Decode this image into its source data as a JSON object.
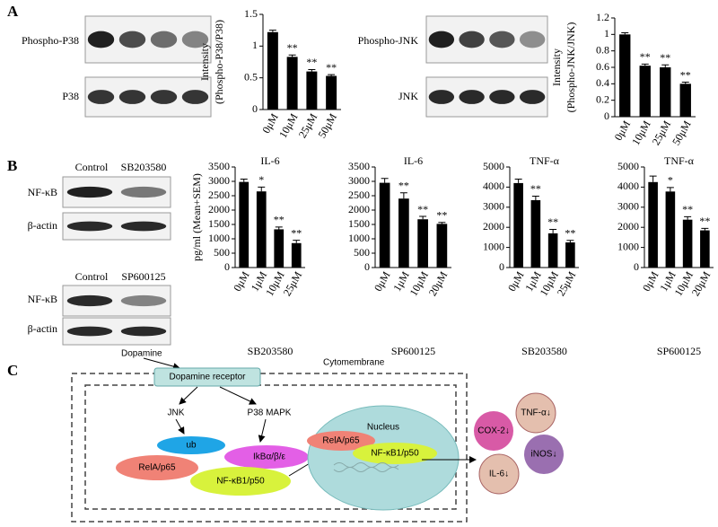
{
  "chart_data": [
    {
      "type": "bar",
      "ylabel": [
        "Intensity",
        "(Phospho-P38/P38)"
      ],
      "categories": [
        "0μM",
        "10μM",
        "25μM",
        "50μM"
      ],
      "values": [
        1.22,
        0.83,
        0.6,
        0.53
      ],
      "errors": [
        0.03,
        0.03,
        0.03,
        0.02
      ],
      "annotations": [
        null,
        "**",
        "**",
        "**"
      ],
      "color": "#000000",
      "ylim": [
        0,
        1.5
      ],
      "yticks": [
        0,
        0.5,
        1,
        1.5
      ]
    },
    {
      "type": "bar",
      "ylabel": [
        "Intensity",
        "(Phospho-JNK/JNK)"
      ],
      "categories": [
        "0μM",
        "10μM",
        "25μM",
        "50μM"
      ],
      "values": [
        1.0,
        0.62,
        0.6,
        0.4
      ],
      "errors": [
        0.02,
        0.02,
        0.03,
        0.02
      ],
      "annotations": [
        null,
        "**",
        "**",
        "**"
      ],
      "color": "#000000",
      "ylim": [
        0,
        1.2
      ],
      "yticks": [
        0,
        0.2,
        0.4,
        0.6,
        0.8,
        1,
        1.2
      ]
    },
    {
      "type": "bar",
      "title": "IL-6",
      "xlabel": "SB203580",
      "ylabel": [
        "pg/ml (Mean+SEM)"
      ],
      "categories": [
        "0μM",
        "1μM",
        "10μM",
        "25μM"
      ],
      "values": [
        2980,
        2650,
        1330,
        850
      ],
      "errors": [
        100,
        150,
        80,
        100
      ],
      "annotations": [
        null,
        "*",
        "**",
        "**"
      ],
      "color": "#000000",
      "ylim": [
        0,
        3500
      ],
      "yticks": [
        0,
        500,
        1000,
        1500,
        2000,
        2500,
        3000,
        3500
      ]
    },
    {
      "type": "bar",
      "title": "IL-6",
      "xlabel": "SP600125",
      "categories": [
        "0μM",
        "1μM",
        "10μM",
        "20μM"
      ],
      "values": [
        2950,
        2400,
        1680,
        1520
      ],
      "errors": [
        150,
        200,
        100,
        50
      ],
      "annotations": [
        null,
        "**",
        "**",
        "**"
      ],
      "color": "#000000",
      "ylim": [
        0,
        3500
      ],
      "yticks": [
        0,
        500,
        1000,
        1500,
        2000,
        2500,
        3000,
        3500
      ]
    },
    {
      "type": "bar",
      "title": "TNF-α",
      "xlabel": "SB203580",
      "categories": [
        "0μM",
        "1μM",
        "10μM",
        "25μM"
      ],
      "values": [
        4200,
        3350,
        1700,
        1250
      ],
      "errors": [
        200,
        200,
        200,
        100
      ],
      "annotations": [
        null,
        "**",
        "**",
        "**"
      ],
      "color": "#000000",
      "ylim": [
        0,
        5000
      ],
      "yticks": [
        0,
        1000,
        2000,
        3000,
        4000,
        5000
      ]
    },
    {
      "type": "bar",
      "title": "TNF-α",
      "xlabel": "SP600125",
      "categories": [
        "0μM",
        "1μM",
        "10μM",
        "20μM"
      ],
      "values": [
        4250,
        3780,
        2380,
        1850
      ],
      "errors": [
        300,
        200,
        150,
        100
      ],
      "annotations": [
        null,
        "*",
        "**",
        "**"
      ],
      "color": "#000000",
      "ylim": [
        0,
        5000
      ],
      "yticks": [
        0,
        1000,
        2000,
        3000,
        4000,
        5000
      ]
    }
  ],
  "panel_labels": [
    "A",
    "B",
    "C"
  ],
  "blot_labels": [
    "Phospho-P38",
    "P38",
    "Phospho-JNK",
    "JNK",
    "NF-κB",
    "β-actin",
    "NF-κB",
    "β-actin"
  ],
  "blot_column_labels": [
    "Control",
    "SB203580",
    "Control",
    "SP600125"
  ],
  "diagram": {
    "dopamine": "Dopamine",
    "receptor": "Dopamine receptor",
    "membrane": "Cytomembrane",
    "jnk": "JNK",
    "p38": "P38 MAPK",
    "ub": "ub",
    "ikb": "IkBα/β/ε",
    "rela": "RelA/p65",
    "nfkb": "NF-κB1/p50",
    "nucleus": "Nucleus",
    "nuclear_rela": "RelA/p65",
    "nuclear_nfkb": "NF-κB1/p50",
    "outputs": [
      "COX-2↓",
      "TNF-α↓",
      "iNOS↓",
      "IL-6↓"
    ]
  }
}
